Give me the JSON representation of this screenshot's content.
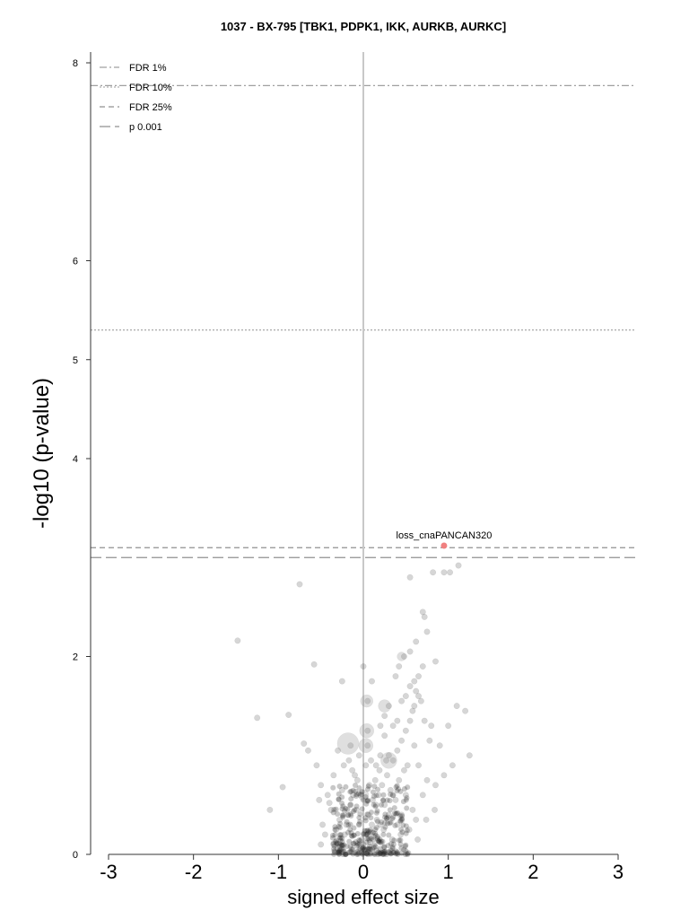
{
  "chart_data": {
    "type": "scatter",
    "title": "1037 - BX-795 [TBK1, PDPK1, IKK, AURKB, AURKC]",
    "xlabel": "signed effect size",
    "ylabel": "-log10 (p-value)",
    "xlim": [
      -3.2,
      3.2
    ],
    "ylim": [
      0,
      8.1
    ],
    "x_ticks": [
      -3,
      -2,
      -1,
      0,
      1,
      2,
      3
    ],
    "y_ticks": [
      0,
      2,
      4,
      5,
      6,
      8
    ],
    "grid": false,
    "legend_position": "top-left",
    "thresholds": [
      {
        "name": "FDR 1%",
        "y": 7.77,
        "style": "dash-dot"
      },
      {
        "name": "FDR 10%",
        "y": 5.3,
        "style": "dotted"
      },
      {
        "name": "FDR 25%",
        "y": 3.1,
        "style": "short-dash"
      },
      {
        "name": "p 0.001",
        "y": 3.0,
        "style": "long-dash"
      }
    ],
    "highlighted": [
      {
        "label": "loss_cnaPANCAN320",
        "x": 0.95,
        "y": 3.12,
        "color": "#f08080"
      }
    ],
    "points": [
      [
        -0.75,
        2.73
      ],
      [
        -1.48,
        2.16
      ],
      [
        -0.58,
        1.92
      ],
      [
        -1.25,
        1.38
      ],
      [
        -0.88,
        1.41
      ],
      [
        -1.1,
        0.45
      ],
      [
        -0.95,
        0.68
      ],
      [
        -0.7,
        1.12
      ],
      [
        -0.65,
        1.05
      ],
      [
        -0.55,
        0.9
      ],
      [
        -0.5,
        0.7
      ],
      [
        -0.4,
        0.52
      ],
      [
        -0.35,
        0.8
      ],
      [
        -0.3,
        1.05
      ],
      [
        -0.25,
        0.65
      ],
      [
        -0.45,
        0.2
      ],
      [
        -0.5,
        0.1
      ],
      [
        -0.35,
        0.1
      ],
      [
        -0.2,
        0.3
      ],
      [
        -0.15,
        0.5
      ],
      [
        -0.1,
        0.8
      ],
      [
        -0.05,
        1.0
      ],
      [
        0.0,
        1.9
      ],
      [
        0.1,
        1.75
      ],
      [
        -0.25,
        1.75
      ],
      [
        0.05,
        1.55
      ],
      [
        0.05,
        1.25
      ],
      [
        0.05,
        1.1
      ],
      [
        -0.15,
        1.1
      ],
      [
        0.15,
        0.9
      ],
      [
        0.2,
        1.0
      ],
      [
        0.25,
        1.2
      ],
      [
        0.3,
        1.0
      ],
      [
        0.35,
        1.3
      ],
      [
        0.4,
        1.35
      ],
      [
        0.45,
        1.55
      ],
      [
        0.5,
        1.6
      ],
      [
        0.55,
        1.7
      ],
      [
        0.6,
        1.75
      ],
      [
        0.65,
        1.8
      ],
      [
        0.7,
        2.45
      ],
      [
        0.72,
        2.4
      ],
      [
        0.62,
        2.15
      ],
      [
        0.55,
        2.05
      ],
      [
        0.48,
        2.0
      ],
      [
        0.42,
        1.9
      ],
      [
        0.38,
        1.8
      ],
      [
        0.3,
        1.5
      ],
      [
        0.25,
        1.4
      ],
      [
        0.2,
        1.3
      ],
      [
        0.55,
        2.8
      ],
      [
        0.82,
        2.85
      ],
      [
        0.95,
        2.85
      ],
      [
        1.02,
        2.85
      ],
      [
        1.12,
        2.92
      ],
      [
        0.75,
        2.25
      ],
      [
        0.85,
        1.95
      ],
      [
        0.7,
        1.9
      ],
      [
        0.65,
        1.6
      ],
      [
        0.6,
        1.5
      ],
      [
        0.8,
        1.3
      ],
      [
        0.9,
        1.1
      ],
      [
        1.0,
        1.3
      ],
      [
        1.1,
        1.5
      ],
      [
        1.2,
        1.45
      ],
      [
        1.25,
        1.0
      ],
      [
        1.05,
        0.9
      ],
      [
        0.95,
        0.8
      ],
      [
        0.85,
        0.7
      ],
      [
        0.75,
        0.75
      ],
      [
        0.7,
        0.6
      ],
      [
        0.65,
        0.9
      ],
      [
        0.6,
        1.1
      ],
      [
        0.5,
        0.6
      ],
      [
        0.45,
        0.4
      ],
      [
        0.4,
        0.3
      ],
      [
        0.35,
        0.6
      ],
      [
        0.3,
        0.4
      ],
      [
        0.25,
        0.5
      ],
      [
        0.2,
        0.3
      ],
      [
        0.15,
        0.5
      ],
      [
        0.1,
        0.3
      ],
      [
        0.05,
        0.2
      ],
      [
        0.0,
        0.1
      ],
      [
        -0.05,
        0.3
      ],
      [
        0.02,
        0.05
      ],
      [
        0.08,
        0.12
      ],
      [
        0.12,
        0.18
      ],
      [
        -0.02,
        0.15
      ],
      [
        0.06,
        0.4
      ],
      [
        0.18,
        0.6
      ],
      [
        0.22,
        0.7
      ],
      [
        0.28,
        0.8
      ],
      [
        0.32,
        0.65
      ],
      [
        0.38,
        0.55
      ],
      [
        0.42,
        0.75
      ],
      [
        0.48,
        0.85
      ],
      [
        0.52,
        0.9
      ],
      [
        0.58,
        0.45
      ],
      [
        0.62,
        0.35
      ],
      [
        -0.08,
        0.45
      ],
      [
        -0.12,
        0.6
      ],
      [
        -0.18,
        0.4
      ],
      [
        -0.22,
        0.2
      ],
      [
        -0.28,
        0.35
      ],
      [
        -0.32,
        0.25
      ],
      [
        -0.38,
        0.45
      ],
      [
        -0.42,
        0.6
      ],
      [
        -0.48,
        0.3
      ],
      [
        -0.52,
        0.55
      ],
      [
        0.07,
        0.7
      ],
      [
        0.11,
        0.55
      ],
      [
        0.16,
        0.35
      ],
      [
        0.24,
        0.25
      ],
      [
        0.34,
        0.15
      ],
      [
        0.44,
        0.2
      ],
      [
        0.54,
        0.25
      ],
      [
        0.64,
        0.15
      ],
      [
        0.74,
        0.35
      ],
      [
        0.84,
        0.45
      ],
      [
        0.03,
        0.9
      ],
      [
        0.09,
        0.95
      ],
      [
        0.14,
        0.75
      ],
      [
        0.19,
        0.85
      ],
      [
        0.27,
        0.95
      ],
      [
        -0.03,
        0.6
      ],
      [
        -0.07,
        0.75
      ],
      [
        -0.13,
        0.85
      ],
      [
        -0.17,
        0.95
      ],
      [
        -0.23,
        0.9
      ],
      [
        0.5,
        1.25
      ],
      [
        0.55,
        1.35
      ],
      [
        0.45,
        1.15
      ],
      [
        0.4,
        1.05
      ],
      [
        0.35,
        0.95
      ],
      [
        0.58,
        1.45
      ],
      [
        0.62,
        1.65
      ],
      [
        0.68,
        1.55
      ],
      [
        0.72,
        1.35
      ],
      [
        0.78,
        1.15
      ]
    ],
    "large_points": [
      [
        -0.18,
        1.12,
        12
      ],
      [
        0.04,
        1.25,
        8
      ],
      [
        0.04,
        1.55,
        7
      ],
      [
        0.03,
        1.1,
        8
      ],
      [
        0.25,
        1.5,
        7
      ],
      [
        0.3,
        0.95,
        9
      ],
      [
        0.0,
        0.6,
        6
      ],
      [
        0.45,
        2.0,
        5
      ]
    ]
  }
}
